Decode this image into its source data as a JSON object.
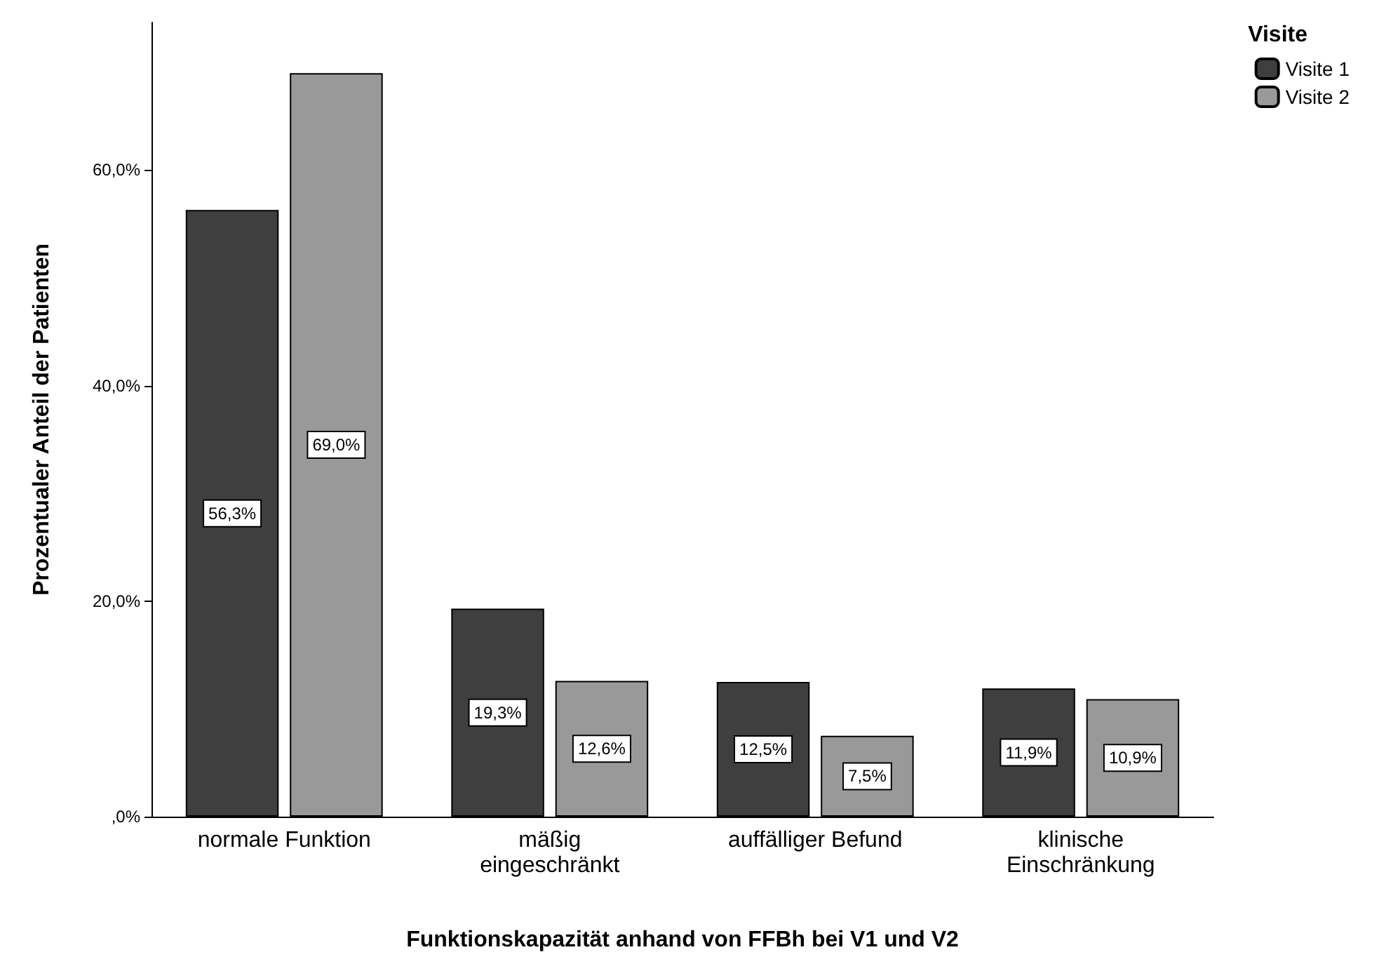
{
  "chart_data": {
    "type": "bar",
    "xlabel": "Funktionskapazität anhand von FFBh bei V1 und V2",
    "ylabel": "Prozentualer Anteil der Patienten",
    "legend_title": "Visite",
    "legend": "top right",
    "grid": false,
    "categories": [
      "normale Funktion",
      "mäßig\neingeschränkt",
      "auffälliger Befund",
      "klinische\nEinschränkung"
    ],
    "series": [
      {
        "name": "Visite 1",
        "color": "#3f3f3f",
        "values": [
          56.3,
          19.3,
          12.5,
          11.9
        ],
        "value_labels": [
          "56,3%",
          "19,3%",
          "12,5%",
          "11,9%"
        ]
      },
      {
        "name": "Visite 2",
        "color": "#999999",
        "values": [
          69.0,
          12.6,
          7.5,
          10.9
        ],
        "value_labels": [
          "69,0%",
          "12,6%",
          "7,5%",
          "10,9%"
        ]
      }
    ],
    "ylim": [
      0,
      73.7
    ],
    "yticks": [
      {
        "value": 0,
        "label": ",0%"
      },
      {
        "value": 20,
        "label": "20,0%"
      },
      {
        "value": 40,
        "label": "40,0%"
      },
      {
        "value": 60,
        "label": "60,0%"
      }
    ]
  }
}
